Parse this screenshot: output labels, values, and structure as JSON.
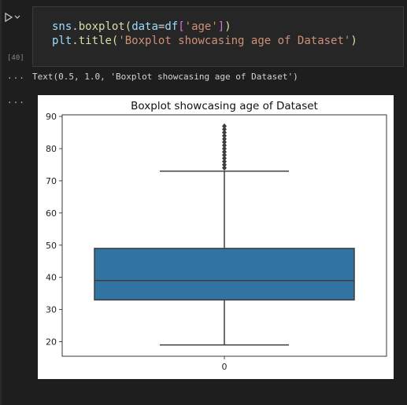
{
  "cell": {
    "execution_count": "[40]",
    "code_line_1": [
      "sns",
      ".",
      "boxplot",
      "(",
      "data",
      "=",
      "df",
      "[",
      "'age'",
      "]",
      ")"
    ],
    "code_line_2": [
      "plt",
      ".",
      "title",
      "(",
      "'Boxplot showcasing age of Dataset'",
      ")"
    ]
  },
  "output": {
    "more_label": "...",
    "text_repr": "Text(0.5, 1.0, 'Boxplot showcasing age of Dataset')"
  },
  "colors": {
    "box_fill": "#3274a1",
    "line": "#3d3d3d",
    "string": "#ce9178",
    "function": "#dcdcaa",
    "variable": "#9cdcfe",
    "default": "#d4d4d4",
    "bracket": "#da70d6"
  },
  "chart_data": {
    "type": "box",
    "title": "Boxplot showcasing age of Dataset",
    "categories": [
      "0"
    ],
    "yticks": [
      20,
      30,
      40,
      50,
      60,
      70,
      80,
      90
    ],
    "ylim": [
      15.5,
      90.5
    ],
    "box": {
      "whisker_low": 19,
      "q1": 33,
      "median": 39,
      "q3": 49,
      "whisker_high": 73,
      "outliers": [
        74,
        75,
        76,
        77,
        78,
        79,
        80,
        81,
        82,
        83,
        84,
        85,
        86,
        87
      ]
    }
  }
}
